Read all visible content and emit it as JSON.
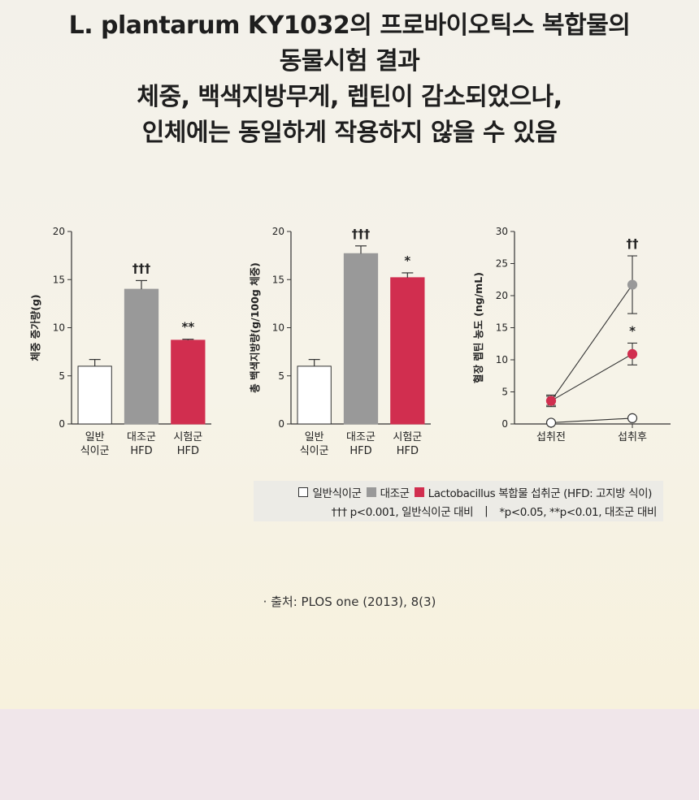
{
  "headline": {
    "lines": [
      "L. plantarum KY1032의 프로바이오틱스 복합물의",
      "동물시험 결과",
      "체중, 백색지방무게, 렙틴이 감소되었으나,",
      "인체에는 동일하게 작용하지 않을 수 있음"
    ]
  },
  "colors": {
    "normal": "#ffffff",
    "control": "#999999",
    "test": "#d12e4f",
    "axis": "#333333"
  },
  "chart_data": [
    {
      "type": "bar",
      "ylabel": "체중 증가량(g)",
      "ylim": [
        0,
        20
      ],
      "yticks": [
        "0",
        "5",
        "10",
        "15",
        "20"
      ],
      "categories": [
        [
          "일반",
          "식이군"
        ],
        [
          "대조군",
          "HFD"
        ],
        [
          "시험군",
          "HFD"
        ]
      ],
      "values": [
        6.0,
        14.0,
        8.7
      ],
      "errors": [
        0.7,
        0.9,
        0.1
      ],
      "annotations": [
        "",
        "†††",
        "**"
      ]
    },
    {
      "type": "bar",
      "ylabel": "총 백색지방량(g/100g 체중)",
      "ylim": [
        0,
        20
      ],
      "yticks": [
        "0",
        "5",
        "10",
        "15",
        "20"
      ],
      "categories": [
        [
          "일반",
          "식이군"
        ],
        [
          "대조군",
          "HFD"
        ],
        [
          "시험군",
          "HFD"
        ]
      ],
      "values": [
        6.0,
        17.7,
        15.2
      ],
      "errors": [
        0.7,
        0.8,
        0.5
      ],
      "annotations": [
        "",
        "†††",
        "*"
      ]
    },
    {
      "type": "line",
      "ylabel": "혈장 렙틴 농도 (ng/mL)",
      "ylim": [
        0,
        30
      ],
      "yticks": [
        "0",
        "5",
        "10",
        "15",
        "20",
        "25",
        "30"
      ],
      "x": [
        "섭취전",
        "섭취후"
      ],
      "series": [
        {
          "key": "control",
          "values": [
            3.6,
            21.7
          ],
          "errors": [
            0.9,
            4.5
          ],
          "annotation": "††"
        },
        {
          "key": "test",
          "values": [
            3.6,
            10.9
          ],
          "errors": [
            0.7,
            1.7
          ],
          "annotation": "*"
        },
        {
          "key": "normal",
          "values": [
            0.2,
            0.9
          ],
          "errors": [
            0,
            0
          ],
          "annotation": ""
        }
      ]
    }
  ],
  "legend": {
    "items": [
      "일반식이군",
      "대조군",
      "Lactobacillus 복합물 섭취군 (HFD: 고지방 식이)"
    ],
    "note_left": "††† p<0.001, 일반식이군 대비",
    "separator": "|",
    "note_right": "*p<0.05, **p<0.01, 대조군 대비"
  },
  "source": "· 출처: PLOS one (2013), 8(3)"
}
